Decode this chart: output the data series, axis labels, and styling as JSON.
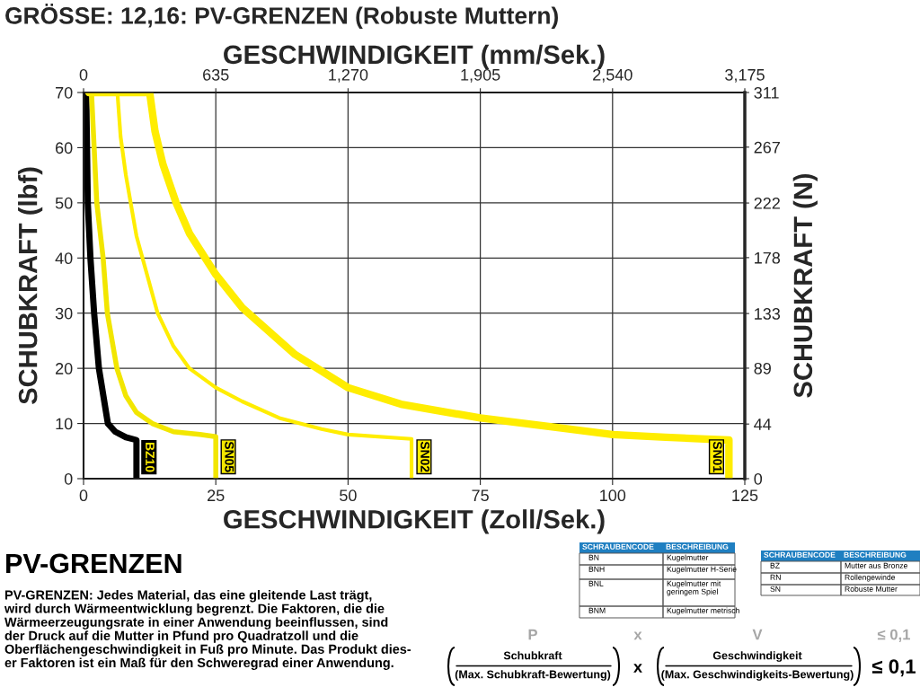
{
  "chart_data": {
    "type": "line",
    "title": "GRÖSSE: 12,16: PV-GRENZEN (Robuste Muttern)",
    "xlabel": "GESCHWINDIGKEIT (Zoll/Sek.)",
    "x2label": "GESCHWINDIGKEIT (mm/Sek.)",
    "ylabel": "SCHUBKRAFT (lbf)",
    "y2label": "SCHUBKRAFT (N)",
    "xlim": [
      0,
      125
    ],
    "xticks": [
      0,
      25,
      50,
      75,
      100,
      125
    ],
    "ylim": [
      0,
      70
    ],
    "yticks": [
      0,
      10,
      20,
      30,
      40,
      50,
      60,
      70
    ],
    "x2lim": [
      0,
      3175
    ],
    "x2ticks": [
      0,
      635,
      {
        "value": 1270,
        "label": "1,270"
      },
      {
        "value": 1905,
        "label": "1,905"
      },
      {
        "value": 2540,
        "label": "2,540"
      },
      {
        "value": 3175,
        "label": "3,175"
      }
    ],
    "y2lim": [
      0,
      311
    ],
    "y2ticks": [
      0,
      44,
      89,
      133,
      178,
      222,
      267,
      311
    ],
    "grid": true,
    "legend": false,
    "marker": "none",
    "line_style": "solid",
    "series": [
      {
        "name": "BZ10",
        "color": "#000000",
        "x": [
          0.5,
          0.8,
          1.3,
          2,
          2.9,
          4.6,
          6,
          8,
          10,
          10
        ],
        "values": [
          70,
          50,
          40,
          30,
          20,
          10,
          8.5,
          7.5,
          7,
          0
        ]
      },
      {
        "name": "SN05",
        "color": "#f2e600",
        "x": [
          1.5,
          2,
          2.5,
          3.7,
          4.5,
          6.3,
          8,
          10,
          13,
          17,
          22,
          25,
          25
        ],
        "values": [
          70,
          60,
          50,
          40,
          30,
          20,
          15,
          12,
          10,
          8.5,
          8,
          7.6,
          0
        ]
      },
      {
        "name": "SN02",
        "color": "#ffed00",
        "x": [
          6.4,
          7,
          8,
          10,
          12,
          14,
          17,
          20,
          25,
          30,
          37,
          45,
          50,
          62,
          62
        ],
        "values": [
          70,
          62,
          55,
          44,
          37,
          30,
          24,
          20,
          16.5,
          14,
          11,
          9,
          8,
          7.2,
          0
        ]
      },
      {
        "name": "SN01",
        "color": "#ffed00",
        "x": [
          1,
          12.5,
          13.5,
          15,
          17.5,
          20,
          25,
          30,
          40,
          50,
          60,
          75,
          90,
          100,
          110,
          122,
          122
        ],
        "values": [
          70,
          70,
          63,
          57,
          50,
          44.5,
          37,
          31,
          22.5,
          16.5,
          13.5,
          11,
          9.2,
          8,
          7.5,
          7,
          0
        ]
      }
    ],
    "annotations": [
      "PV-GRENZEN",
      "PV-GRENZEN: Jedes Material, das eine gleitende Last trägt,\nwird durch Wärmeentwicklung begrenzt. Die Faktoren, die die\nWärmeerzeugungsrate in einer Anwendung beeinflussen, sind\nder Druck auf die Mutter in Pfund pro Quadratzoll und die\nOberflächengeschwindigkeit in Fuß pro Minute. Das Produkt dies-\ner Faktoren ist ein Maß für den Schweregrad einer Anwendung.",
      "SCHRAUBENCODE",
      "BESCHREIBUNG",
      "BN",
      "Kugelmutter",
      "BNH",
      "Kugelmutter H-Serie",
      "BNL",
      "Kugelmutter mit\ngeringem Spiel",
      "BNM",
      "Kugelmutter metrisch",
      "SCHRAUBENCODE",
      "BESCHREIBUNG",
      "BZ",
      "Mutter aus Bronze",
      "RN",
      "Rollengewinde",
      "SN",
      "Robuste Mutter",
      "P",
      "x",
      "V",
      "≤ 0,1",
      "Schubkraft",
      "(Max. Schubkraft-Bewertung)",
      "x",
      "Geschwindigkeit",
      "(Max. Geschwindigkeits-Bewertung)",
      "≤ 0,1"
    ]
  }
}
